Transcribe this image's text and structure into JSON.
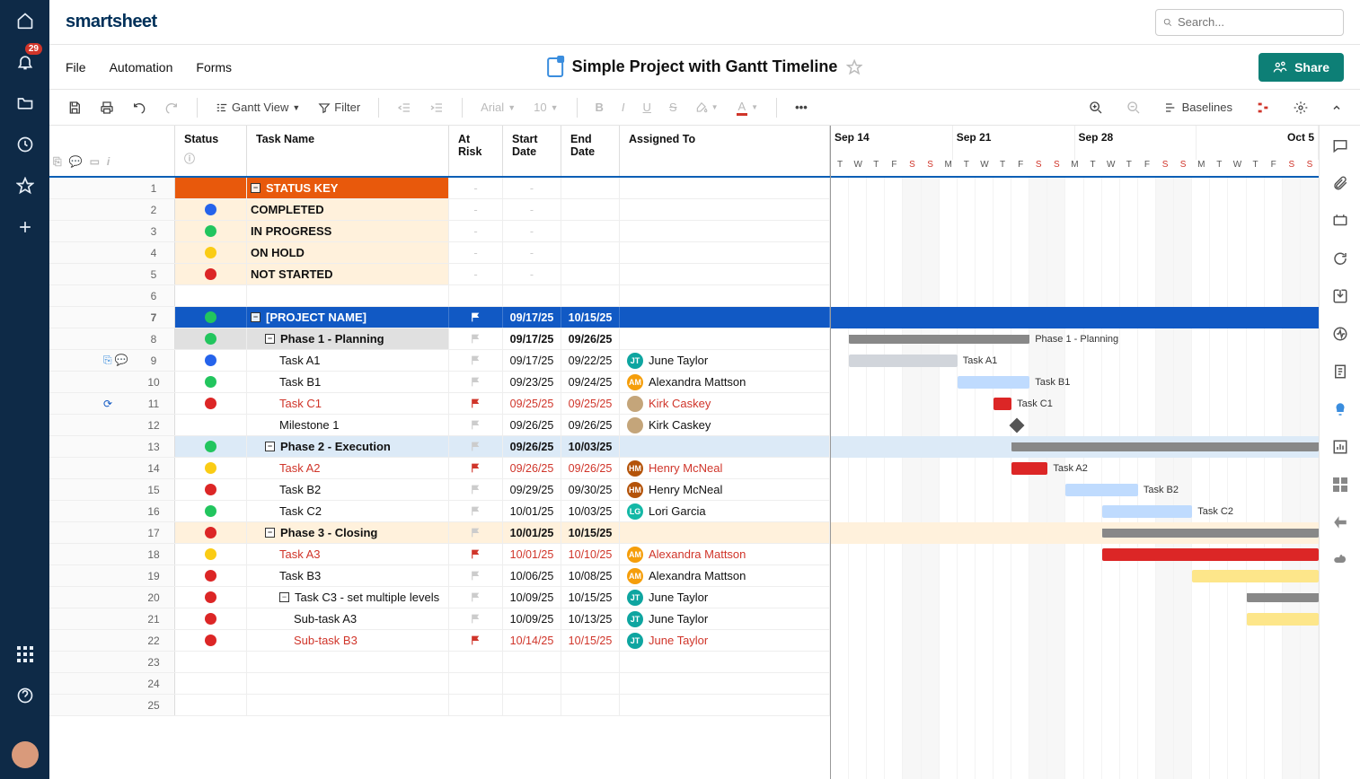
{
  "app": {
    "logo": "smartsheet",
    "search_placeholder": "Search...",
    "notif_count": "29"
  },
  "menu": {
    "file": "File",
    "automation": "Automation",
    "forms": "Forms"
  },
  "sheet": {
    "title": "Simple Project with Gantt Timeline"
  },
  "share": {
    "label": "Share"
  },
  "toolbar": {
    "view_label": "Gantt View",
    "filter_label": "Filter",
    "font": "Arial",
    "size": "10",
    "baselines": "Baselines"
  },
  "columns": {
    "status": "Status",
    "task": "Task Name",
    "risk": "At Risk",
    "start": "Start Date",
    "end": "End Date",
    "assigned": "Assigned To"
  },
  "status_colors": {
    "completed": "#2563eb",
    "inprogress": "#22c55e",
    "onhold": "#facc15",
    "notstarted": "#dc2626"
  },
  "people": {
    "jt": {
      "name": "June Taylor",
      "initials": "JT",
      "color": "#0ea5a0"
    },
    "am": {
      "name": "Alexandra Mattson",
      "initials": "AM",
      "color": "#f59e0b"
    },
    "kc": {
      "name": "Kirk Caskey",
      "initials": "",
      "color": "#c4a57a"
    },
    "hm": {
      "name": "Henry McNeal",
      "initials": "HM",
      "color": "#b45309"
    },
    "lg": {
      "name": "Lori Garcia",
      "initials": "LG",
      "color": "#14b8a6"
    }
  },
  "rows": [
    {
      "n": 1,
      "type": "hdr-orange",
      "name": "STATUS KEY",
      "collapse": true,
      "risk": "-",
      "start": "-"
    },
    {
      "n": 2,
      "type": "key",
      "status": "completed",
      "name": "COMPLETED",
      "risk": "-",
      "start": "-"
    },
    {
      "n": 3,
      "type": "key",
      "status": "inprogress",
      "name": "IN PROGRESS",
      "risk": "-",
      "start": "-"
    },
    {
      "n": 4,
      "type": "key",
      "status": "onhold",
      "name": "ON HOLD",
      "risk": "-",
      "start": "-"
    },
    {
      "n": 5,
      "type": "key",
      "status": "notstarted",
      "name": "NOT STARTED",
      "risk": "-",
      "start": "-"
    },
    {
      "n": 6,
      "type": "blank"
    },
    {
      "n": 7,
      "type": "proj",
      "status": "inprogress",
      "name": "[PROJECT NAME]",
      "collapse": true,
      "flag": "white",
      "start": "09/17/25",
      "end": "10/15/25",
      "bar": {
        "s": 1,
        "w": 27,
        "kind": "proj",
        "color": "#1159c4"
      }
    },
    {
      "n": 8,
      "type": "phase-gray",
      "status": "inprogress",
      "name": "Phase 1 - Planning",
      "collapse": true,
      "indent": 1,
      "flag": "gray",
      "start": "09/17/25",
      "end": "09/26/25",
      "bar": {
        "s": 1,
        "w": 10,
        "kind": "summary",
        "label": "Phase 1 - Planning"
      }
    },
    {
      "n": 9,
      "indent": 2,
      "status": "completed",
      "name": "Task A1",
      "flag": "gray",
      "start": "09/17/25",
      "end": "09/22/25",
      "assignee": "jt",
      "ind": "attach,comment",
      "bar": {
        "s": 1,
        "w": 6,
        "color": "#d1d5db",
        "label": "Task A1"
      }
    },
    {
      "n": 10,
      "indent": 2,
      "status": "inprogress",
      "name": "Task B1",
      "flag": "gray",
      "start": "09/23/25",
      "end": "09/24/25",
      "assignee": "am",
      "bar": {
        "s": 7,
        "w": 4,
        "color": "#bfdbfe",
        "label": "Task B1"
      }
    },
    {
      "n": 11,
      "indent": 2,
      "status": "notstarted",
      "name": "Task C1",
      "red": true,
      "flag": "red",
      "start": "09/25/25",
      "end": "09/25/25",
      "assignee": "kc",
      "assignee_red": true,
      "ind": "refresh",
      "bar": {
        "s": 9,
        "w": 1,
        "color": "#dc2626",
        "label": "Task C1"
      }
    },
    {
      "n": 12,
      "indent": 2,
      "name": "Milestone 1",
      "flag": "gray",
      "start": "09/26/25",
      "end": "09/26/25",
      "assignee": "kc",
      "bar": {
        "s": 10,
        "kind": "milestone",
        "label": "Milestone 1"
      }
    },
    {
      "n": 13,
      "type": "phase-blue",
      "status": "inprogress",
      "name": "Phase 2 - Execution",
      "collapse": true,
      "indent": 1,
      "flag": "gray",
      "start": "09/26/25",
      "end": "10/03/25",
      "bar": {
        "s": 10,
        "w": 17,
        "kind": "summary",
        "label": "Phase 2 - Execution"
      }
    },
    {
      "n": 14,
      "indent": 2,
      "status": "onhold",
      "name": "Task A2",
      "red": true,
      "flag": "red",
      "start": "09/26/25",
      "end": "09/26/25",
      "assignee": "hm",
      "assignee_red": true,
      "bar": {
        "s": 10,
        "w": 2,
        "color": "#dc2626",
        "label": "Task A2"
      }
    },
    {
      "n": 15,
      "indent": 2,
      "status": "notstarted",
      "name": "Task B2",
      "flag": "gray",
      "start": "09/29/25",
      "end": "09/30/25",
      "assignee": "hm",
      "bar": {
        "s": 13,
        "w": 4,
        "color": "#bfdbfe",
        "label": "Task B2"
      }
    },
    {
      "n": 16,
      "indent": 2,
      "status": "inprogress",
      "name": "Task C2",
      "flag": "gray",
      "start": "10/01/25",
      "end": "10/03/25",
      "assignee": "lg",
      "bar": {
        "s": 15,
        "w": 5,
        "color": "#bfdbfe",
        "label": "Task C2"
      }
    },
    {
      "n": 17,
      "type": "phase-tan",
      "status": "notstarted",
      "name": "Phase 3 - Closing",
      "collapse": true,
      "indent": 1,
      "flag": "gray",
      "start": "10/01/25",
      "end": "10/15/25",
      "bar": {
        "s": 15,
        "w": 12,
        "kind": "summary"
      }
    },
    {
      "n": 18,
      "indent": 2,
      "status": "onhold",
      "name": "Task A3",
      "red": true,
      "flag": "red",
      "start": "10/01/25",
      "end": "10/10/25",
      "assignee": "am",
      "assignee_red": true,
      "bar": {
        "s": 15,
        "w": 12,
        "color": "#dc2626"
      }
    },
    {
      "n": 19,
      "indent": 2,
      "status": "notstarted",
      "name": "Task B3",
      "flag": "gray",
      "start": "10/06/25",
      "end": "10/08/25",
      "assignee": "am",
      "bar": {
        "s": 20,
        "w": 7,
        "color": "#fde68a"
      }
    },
    {
      "n": 20,
      "indent": 2,
      "status": "notstarted",
      "name": "Task C3 - set multiple levels",
      "collapse": true,
      "flag": "gray",
      "start": "10/09/25",
      "end": "10/15/25",
      "assignee": "jt",
      "bar": {
        "s": 23,
        "w": 4,
        "kind": "summary"
      }
    },
    {
      "n": 21,
      "indent": 3,
      "status": "notstarted",
      "name": "Sub-task A3",
      "flag": "gray",
      "start": "10/09/25",
      "end": "10/13/25",
      "assignee": "jt",
      "bar": {
        "s": 23,
        "w": 4,
        "color": "#fde68a"
      }
    },
    {
      "n": 22,
      "indent": 3,
      "status": "notstarted",
      "name": "Sub-task B3",
      "red": true,
      "flag": "red",
      "start": "10/14/25",
      "end": "10/15/25",
      "assignee": "jt",
      "assignee_red": true
    },
    {
      "n": 23,
      "type": "blank"
    },
    {
      "n": 24,
      "type": "blank"
    },
    {
      "n": 25,
      "type": "blank"
    }
  ],
  "gantt": {
    "start_date": "Sep 14",
    "weeks": [
      "Sep 14",
      "Sep 21",
      "Sep 28",
      "Oct 5"
    ],
    "days_per_week": 7,
    "day_labels": [
      "T",
      "W",
      "T",
      "F",
      "S",
      "S",
      "M",
      "T",
      "W",
      "T",
      "F",
      "S",
      "S",
      "M",
      "T",
      "W",
      "T",
      "F",
      "S",
      "S",
      "M",
      "T",
      "W",
      "T",
      "F",
      "S",
      "S"
    ],
    "weekend_idx": [
      4,
      5,
      11,
      12,
      18,
      19,
      25,
      26
    ],
    "total_days": 27
  }
}
